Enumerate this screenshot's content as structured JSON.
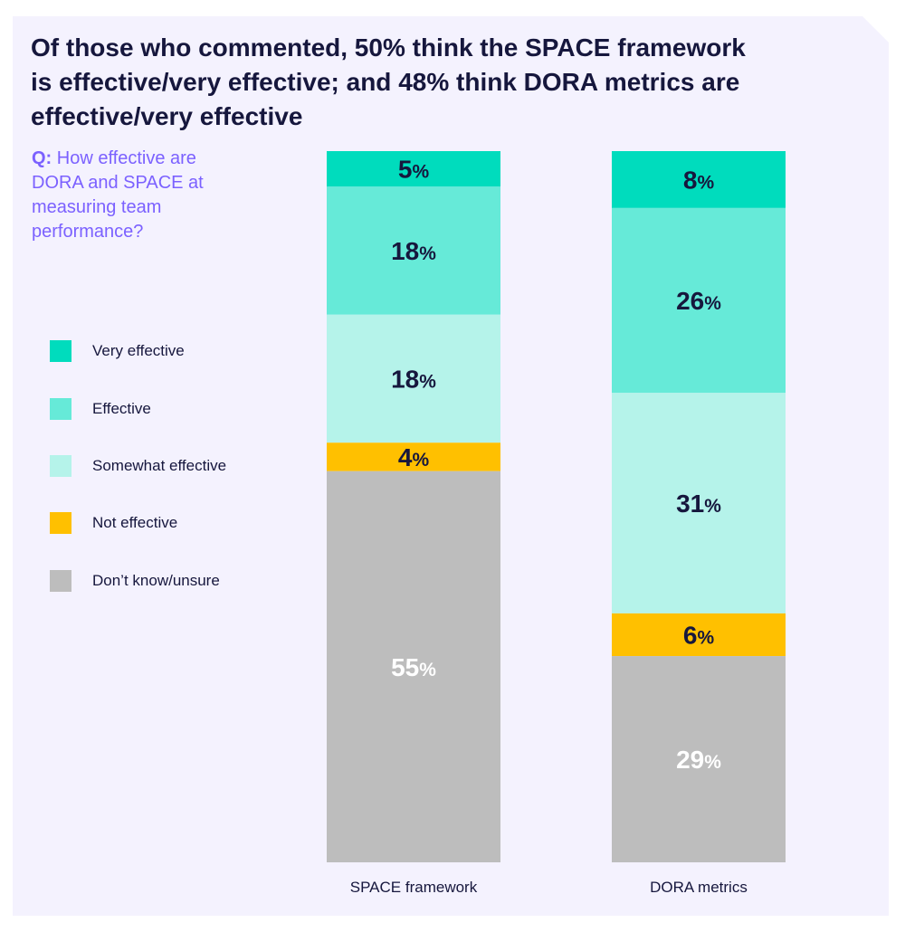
{
  "title": "Of those who commented, 50% think the SPACE framework is effective/very effective; and 48% think DORA metrics are effective/very effective",
  "question": {
    "prefix": "Q:",
    "text": "How effective are DORA and SPACE at measuring team performance?"
  },
  "legend": [
    {
      "label": "Very effective",
      "color": "#00dcbd"
    },
    {
      "label": "Effective",
      "color": "#66ead8"
    },
    {
      "label": "Somewhat effective",
      "color": "#b5f3ea"
    },
    {
      "label": "Not effective",
      "color": "#ffc000"
    },
    {
      "label": "Don’t know/unsure",
      "color": "#bdbdbd"
    }
  ],
  "chart_data": {
    "type": "bar",
    "stacked": true,
    "orientation": "vertical",
    "unit": "%",
    "categories": [
      "SPACE framework",
      "DORA metrics"
    ],
    "series": [
      {
        "name": "Very effective",
        "values": [
          5,
          8
        ],
        "color": "#00dcbd",
        "label_color": "#16173d"
      },
      {
        "name": "Effective",
        "values": [
          18,
          26
        ],
        "color": "#66ead8",
        "label_color": "#16173d"
      },
      {
        "name": "Somewhat effective",
        "values": [
          18,
          31
        ],
        "color": "#b5f3ea",
        "label_color": "#16173d"
      },
      {
        "name": "Not effective",
        "values": [
          4,
          6
        ],
        "color": "#ffc000",
        "label_color": "#16173d"
      },
      {
        "name": "Don’t know/unsure",
        "values": [
          55,
          29
        ],
        "color": "#bdbdbd",
        "label_color": "#ffffff"
      }
    ],
    "ylim": [
      0,
      100
    ],
    "grid": false,
    "legend_position": "left"
  }
}
